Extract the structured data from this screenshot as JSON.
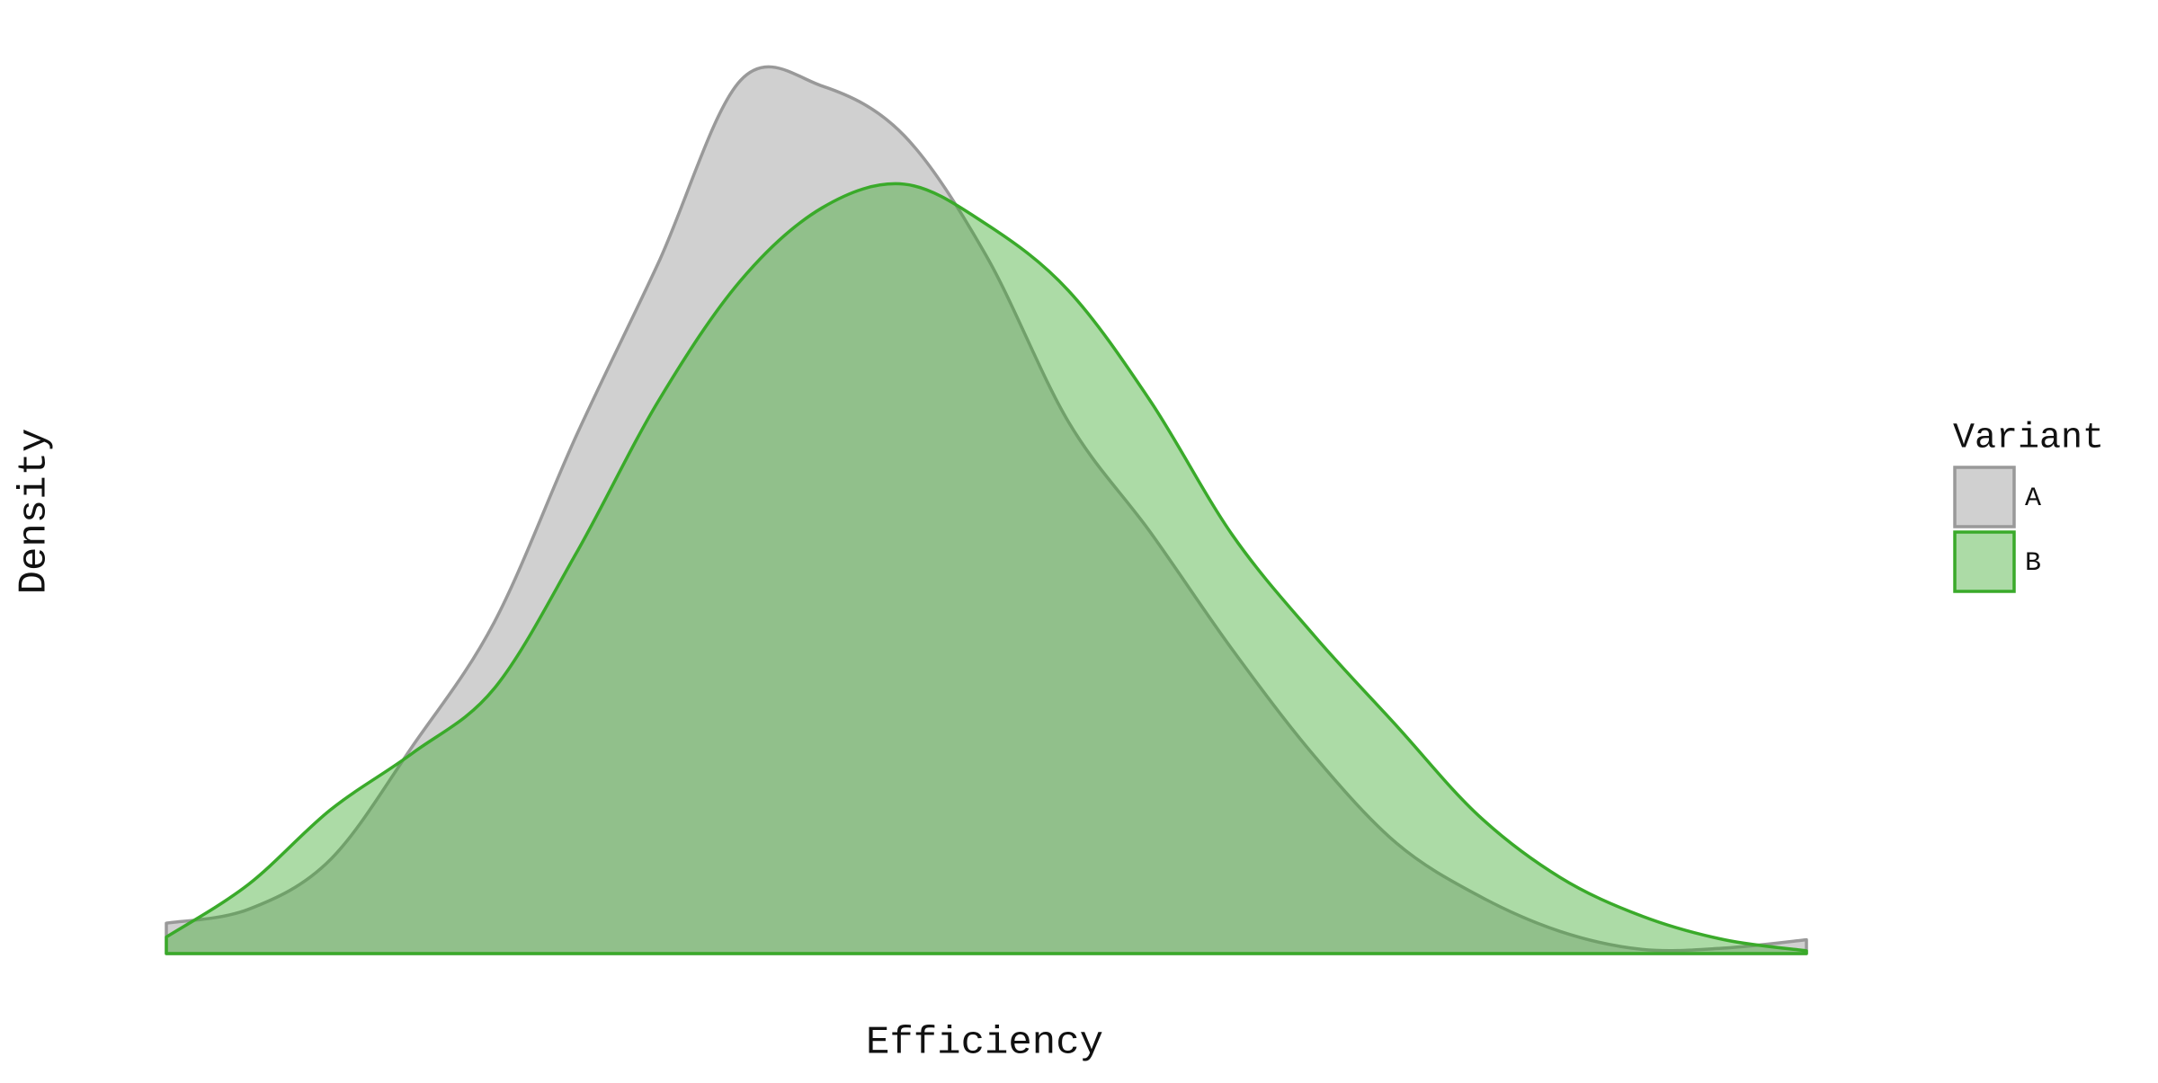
{
  "chart_data": {
    "type": "density",
    "x_label": "Efficiency",
    "y_label": "Density",
    "legend_title": "Variant",
    "legend_position": "right",
    "x": [
      0,
      5,
      10,
      15,
      20,
      25,
      30,
      35,
      40,
      45,
      50,
      55,
      60,
      65,
      70,
      75,
      80,
      85,
      90,
      95,
      100
    ],
    "xlim": [
      0,
      100
    ],
    "ylim": [
      0,
      6.5
    ],
    "series": [
      {
        "name": "A",
        "color": "#999999",
        "fill": "#d0d0d0",
        "fill_opacity": 1,
        "values": [
          0.22,
          0.32,
          0.68,
          1.5,
          2.4,
          3.75,
          5.0,
          6.32,
          6.28,
          5.92,
          5.05,
          3.85,
          3.05,
          2.2,
          1.43,
          0.8,
          0.42,
          0.16,
          0.03,
          0.04,
          0.1
        ]
      },
      {
        "name": "B",
        "color": "#3aaa2a",
        "fill": "#3aaa2a",
        "fill_opacity": 0.42,
        "values": [
          0.12,
          0.5,
          1.04,
          1.45,
          1.92,
          2.9,
          4.0,
          4.87,
          5.4,
          5.57,
          5.28,
          4.8,
          4.0,
          3.03,
          2.3,
          1.65,
          1.0,
          0.55,
          0.27,
          0.1,
          0.02
        ]
      }
    ]
  }
}
